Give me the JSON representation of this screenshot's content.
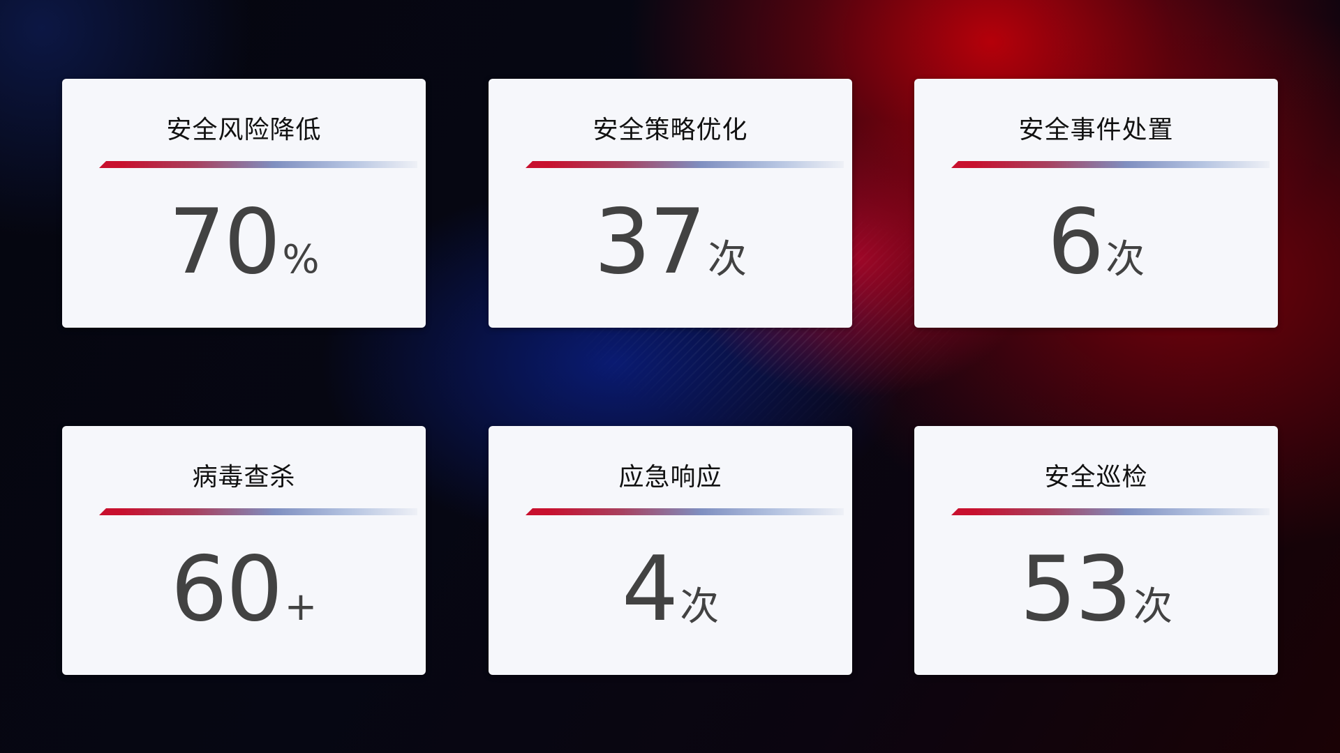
{
  "cards": [
    {
      "title": "安全风险降低",
      "value": "70",
      "unit": "%"
    },
    {
      "title": "安全策略优化",
      "value": "37",
      "unit": "次"
    },
    {
      "title": "安全事件处置",
      "value": "6",
      "unit": "次"
    },
    {
      "title": "病毒查杀",
      "value": "60",
      "unit": "+"
    },
    {
      "title": "应急响应",
      "value": "4",
      "unit": "次"
    },
    {
      "title": "安全巡检",
      "value": "53",
      "unit": "次"
    }
  ],
  "colors": {
    "accent_red": "#c8102e",
    "accent_blue": "#7f8fc0",
    "card_bg": "#f6f7fb",
    "value_text": "#424242"
  }
}
